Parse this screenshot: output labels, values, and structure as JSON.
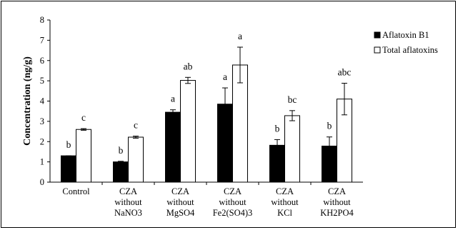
{
  "chart_data": {
    "type": "bar",
    "ylabel": "Concentration (ng/g)",
    "ylim": [
      0,
      8
    ],
    "yticks": [
      "0",
      "1",
      "2",
      "3",
      "4",
      "5",
      "6",
      "7",
      "8"
    ],
    "categories": [
      [
        "Control"
      ],
      [
        "CZA",
        "without",
        "NaNO3"
      ],
      [
        "CZA",
        "without",
        "MgSO4"
      ],
      [
        "CZA",
        "without",
        "Fe2(SO4)3"
      ],
      [
        "CZA",
        "without",
        "KCl"
      ],
      [
        "CZA",
        "without",
        "KH2PO4"
      ]
    ],
    "series": [
      {
        "name": "Aflatoxin B1",
        "color": "#000000",
        "values": [
          1.3,
          1.0,
          3.45,
          3.85,
          1.82,
          1.78
        ],
        "errors": [
          0.0,
          0.03,
          0.12,
          0.8,
          0.28,
          0.45
        ],
        "labels": [
          "b",
          "b",
          "a",
          "a",
          "b",
          "b"
        ]
      },
      {
        "name": "Total aflatoxins",
        "color": "#ffffff",
        "values": [
          2.6,
          2.22,
          5.02,
          5.78,
          3.28,
          4.1
        ],
        "errors": [
          0.04,
          0.05,
          0.15,
          0.88,
          0.25,
          0.78
        ],
        "labels": [
          "c",
          "c",
          "ab",
          "a",
          "bc",
          "abc"
        ]
      }
    ],
    "legend_position": "right",
    "grid": false
  }
}
